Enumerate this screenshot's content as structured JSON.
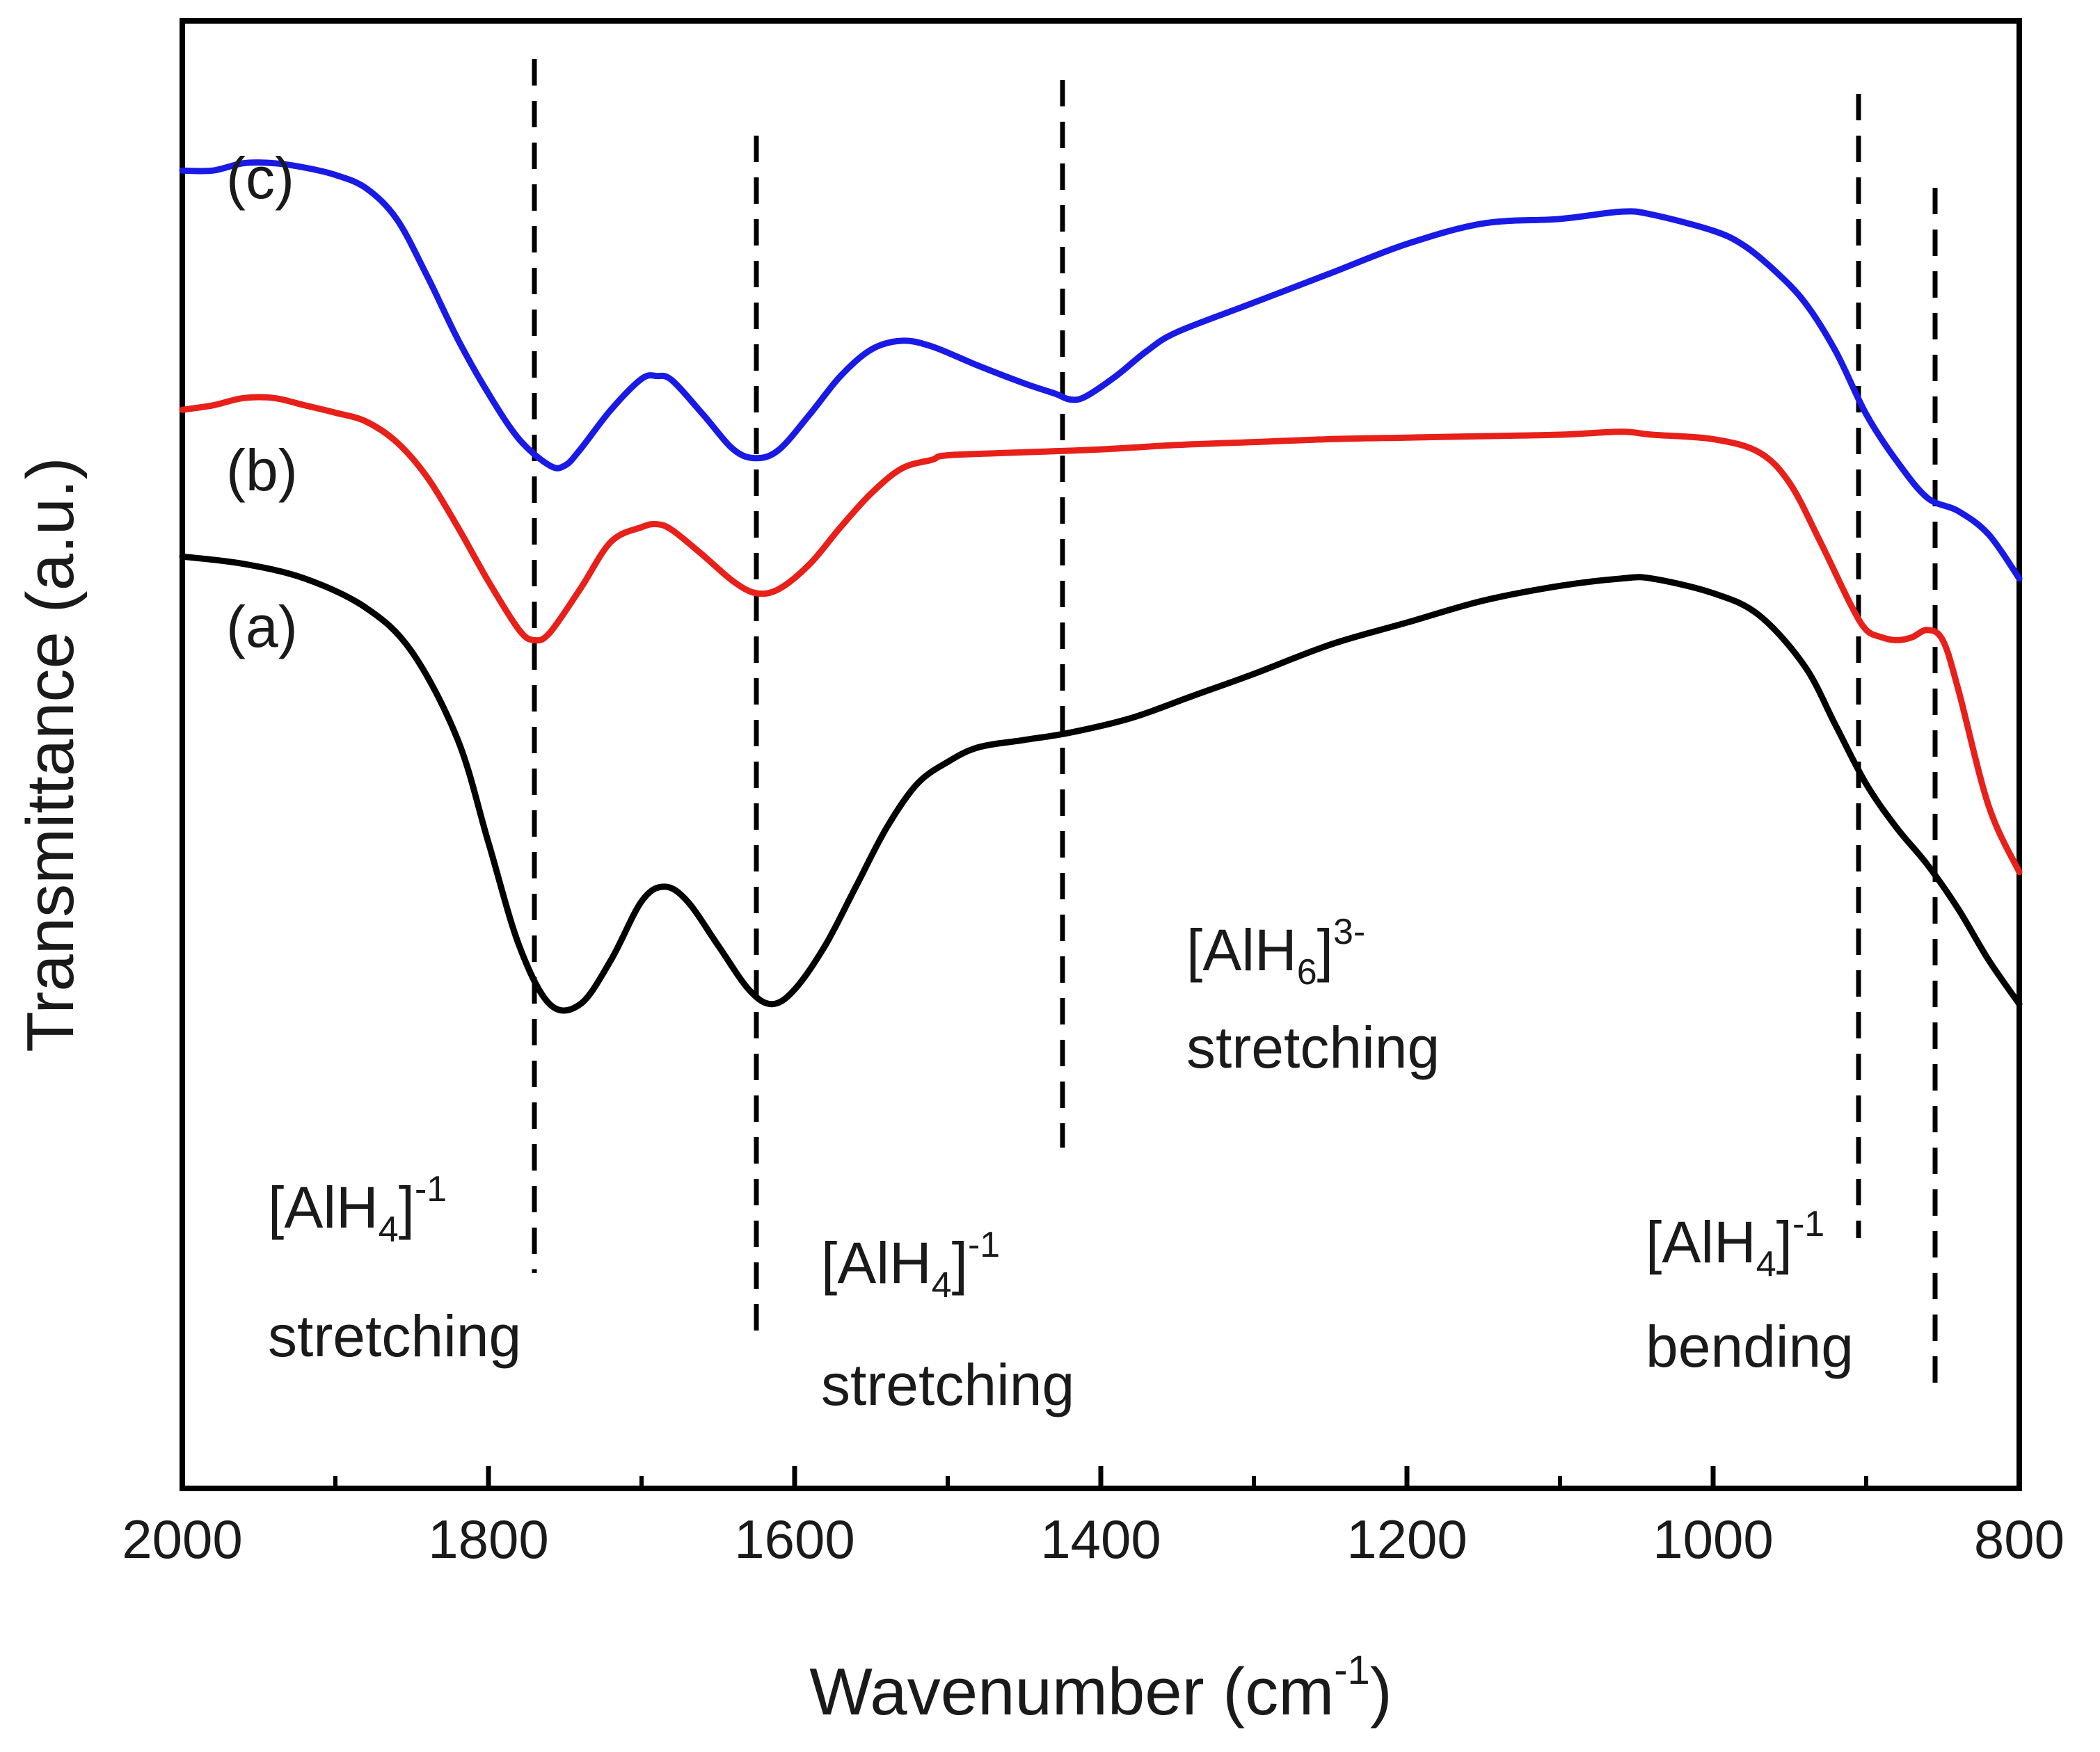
{
  "chart_data": {
    "type": "line",
    "title": "",
    "xlabel": "Wavenumber (cm",
    "xlabel_sup": "-1",
    "xlabel_suffix": ")",
    "ylabel": "Transmittance (a.u.)",
    "xlim": [
      2000,
      800
    ],
    "ylim": [
      0,
      100
    ],
    "x_ticks": [
      2000,
      1800,
      1600,
      1400,
      1200,
      1000,
      800
    ],
    "x_tick_labels": [
      "2000",
      "1800",
      "1600",
      "1400",
      "1200",
      "1000",
      "800"
    ],
    "grid": false,
    "series": [
      {
        "name": "(a)",
        "color": "#000000",
        "x": [
          2000,
          1960,
          1920,
          1880,
          1850,
          1820,
          1800,
          1780,
          1760,
          1740,
          1720,
          1700,
          1685,
          1670,
          1650,
          1630,
          1615,
          1600,
          1580,
          1560,
          1540,
          1520,
          1500,
          1480,
          1450,
          1420,
          1380,
          1340,
          1300,
          1250,
          1200,
          1150,
          1100,
          1060,
          1040,
          1000,
          970,
          940,
          920,
          900,
          880,
          860,
          840,
          820,
          800
        ],
        "y": [
          63.5,
          63,
          62,
          60,
          57,
          51,
          44,
          37,
          33,
          33,
          36,
          40,
          41,
          40,
          37,
          34,
          33,
          34,
          37,
          41,
          45,
          48,
          49.5,
          50.5,
          51,
          51.5,
          52.5,
          54,
          55.5,
          57.5,
          59,
          60.5,
          61.5,
          62,
          62,
          61,
          59.5,
          56,
          52,
          48,
          45,
          42.5,
          39.5,
          36,
          33
        ]
      },
      {
        "name": "(b)",
        "color": "#e8201a",
        "x": [
          2000,
          1980,
          1960,
          1940,
          1920,
          1900,
          1880,
          1860,
          1840,
          1820,
          1800,
          1780,
          1770,
          1760,
          1740,
          1720,
          1700,
          1690,
          1680,
          1660,
          1640,
          1625,
          1610,
          1590,
          1570,
          1550,
          1530,
          1510,
          1500,
          1450,
          1400,
          1350,
          1300,
          1250,
          1200,
          1150,
          1100,
          1060,
          1040,
          1000,
          970,
          950,
          930,
          910,
          900,
          890,
          880,
          870,
          860,
          850,
          840,
          820,
          800
        ],
        "y": [
          73.5,
          73.8,
          74.3,
          74.3,
          73.8,
          73.3,
          72.7,
          71.3,
          68.9,
          65.5,
          61.8,
          58.5,
          57.8,
          58.3,
          61.3,
          64.5,
          65.5,
          65.7,
          65.3,
          63.6,
          61.8,
          61.0,
          61.3,
          63.0,
          65.5,
          67.8,
          69.5,
          70.1,
          70.4,
          70.6,
          70.8,
          71.1,
          71.3,
          71.5,
          71.6,
          71.7,
          71.8,
          72.0,
          71.8,
          71.5,
          70.6,
          68.5,
          64.5,
          60.2,
          58.5,
          58.0,
          57.8,
          58.0,
          58.5,
          57.8,
          54.5,
          46.5,
          42.0
        ]
      },
      {
        "name": "(c)",
        "color": "#1a1ae6",
        "x": [
          2000,
          1980,
          1960,
          1940,
          1920,
          1900,
          1880,
          1860,
          1840,
          1820,
          1800,
          1780,
          1760,
          1750,
          1740,
          1720,
          1700,
          1690,
          1680,
          1660,
          1640,
          1625,
          1610,
          1590,
          1570,
          1550,
          1530,
          1510,
          1480,
          1450,
          1430,
          1420,
          1410,
          1390,
          1370,
          1350,
          1300,
          1250,
          1200,
          1150,
          1100,
          1060,
          1040,
          1000,
          980,
          960,
          940,
          920,
          900,
          880,
          860,
          840,
          820,
          800
        ],
        "y": [
          89.8,
          89.8,
          90.3,
          90.3,
          90.0,
          89.5,
          88.6,
          86.5,
          82.6,
          78.3,
          74.6,
          71.5,
          69.7,
          69.7,
          70.8,
          73.5,
          75.6,
          75.8,
          75.5,
          73.2,
          70.8,
          70.2,
          70.8,
          73.2,
          75.8,
          77.6,
          78.2,
          77.8,
          76.5,
          75.3,
          74.6,
          74.2,
          74.4,
          75.8,
          77.5,
          78.8,
          80.8,
          82.8,
          84.8,
          86.2,
          86.5,
          87.0,
          86.8,
          85.7,
          84.7,
          83.0,
          80.8,
          77.5,
          73.2,
          70.0,
          67.5,
          66.6,
          65.0,
          62.0
        ]
      }
    ],
    "series_labels": [
      "(a)",
      "(b)",
      "(c)"
    ],
    "reference_lines": [
      {
        "x": 1770,
        "style": "dashed",
        "color": "#000000"
      },
      {
        "x": 1625,
        "style": "dashed",
        "color": "#000000"
      },
      {
        "x": 1425,
        "style": "dashed",
        "color": "#000000"
      },
      {
        "x": 905,
        "style": "dashed",
        "color": "#000000"
      },
      {
        "x": 855,
        "style": "dashed",
        "color": "#000000"
      }
    ],
    "annotations": [
      {
        "line1_main": "[AlH",
        "line1_sub": "4",
        "line1_close": "]",
        "line1_sup": "-1",
        "line2": "stretching"
      },
      {
        "line1_main": "[AlH",
        "line1_sub": "4",
        "line1_close": "]",
        "line1_sup": "-1",
        "line2": "stretching"
      },
      {
        "line1_main": "[AlH",
        "line1_sub": "6",
        "line1_close": "]",
        "line1_sup": "3-",
        "line2": "stretching"
      },
      {
        "line1_main": "[AlH",
        "line1_sub": "4",
        "line1_close": "]",
        "line1_sup": "-1",
        "line2": "bending"
      }
    ]
  }
}
